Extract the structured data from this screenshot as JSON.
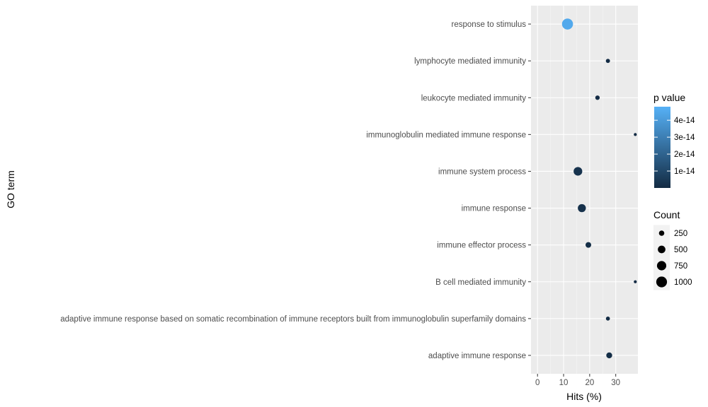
{
  "chart_data": {
    "type": "scatter",
    "xlabel": "Hits (%)",
    "ylabel": "GO term",
    "xlim": [
      -2.5,
      38.5
    ],
    "x_ticks": [
      "0",
      "10",
      "20",
      "30"
    ],
    "grid": true,
    "legend_placement": "right",
    "categories": [
      "response to stimulus",
      "lymphocyte mediated immunity",
      "leukocyte mediated immunity",
      "immunoglobulin mediated immune response",
      "immune system process",
      "immune response",
      "immune effector process",
      "B cell mediated immunity",
      "adaptive immune response based on somatic recombination of immune receptors built from immunoglobulin superfamily domains",
      "adaptive immune response"
    ],
    "points": [
      {
        "term": "response to stimulus",
        "hits": 11.5,
        "count": 1050,
        "p_value": 4.5e-14
      },
      {
        "term": "lymphocyte mediated immunity",
        "hits": 27,
        "count": 150,
        "p_value": 5e-16
      },
      {
        "term": "leukocyte mediated immunity",
        "hits": 23,
        "count": 170,
        "p_value": 5e-16
      },
      {
        "term": "immunoglobulin mediated immune response",
        "hits": 37.5,
        "count": 80,
        "p_value": 5e-16
      },
      {
        "term": "immune system process",
        "hits": 15.5,
        "count": 650,
        "p_value": 3e-15
      },
      {
        "term": "immune response",
        "hits": 17,
        "count": 560,
        "p_value": 2e-15
      },
      {
        "term": "immune effector process",
        "hits": 19.5,
        "count": 280,
        "p_value": 1e-15
      },
      {
        "term": "B cell mediated immunity",
        "hits": 37.5,
        "count": 80,
        "p_value": 5e-16
      },
      {
        "term": "adaptive immune response based on somatic recombination of immune receptors built from immunoglobulin superfamily domains",
        "hits": 27,
        "count": 140,
        "p_value": 5e-16
      },
      {
        "term": "adaptive immune response",
        "hits": 27.5,
        "count": 300,
        "p_value": 1e-15
      }
    ],
    "legend_color": {
      "title": "p value",
      "labels": [
        "4e-14",
        "3e-14",
        "2e-14",
        "1e-14"
      ],
      "values": [
        4e-14,
        3e-14,
        2e-14,
        1e-14
      ],
      "range": [
        0,
        4.8e-14
      ],
      "low_color": "#132B43",
      "high_color": "#56B1F7"
    },
    "legend_size": {
      "title": "Count",
      "labels": [
        "250",
        "500",
        "750",
        "1000"
      ],
      "values": [
        250,
        500,
        750,
        1000
      ]
    },
    "colors": {
      "panel_background": "#EBEBEB",
      "grid_major": "#FFFFFF",
      "grid_minor": "#F5F5F5",
      "tick_text": "#4D4D4D"
    }
  }
}
